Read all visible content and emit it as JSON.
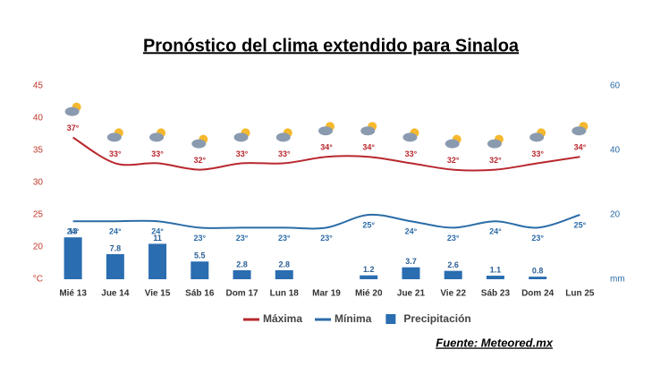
{
  "chart_data": {
    "type": "combo",
    "title": "Pronóstico del clima extendido para Sinaloa",
    "source": "Fuente: Meteored.mx",
    "categories": [
      "Mié 13",
      "Jue 14",
      "Vie 15",
      "Sáb 16",
      "Dom 17",
      "Lun 18",
      "Mar 19",
      "Mié 20",
      "Jue 21",
      "Vie 22",
      "Sáb 23",
      "Dom 24",
      "Lun 25"
    ],
    "ylim": [
      15,
      45
    ],
    "yticks": [
      {
        "value": 15,
        "label": "°C"
      },
      20,
      25,
      30,
      35,
      40,
      45
    ],
    "y2lim": [
      0,
      60
    ],
    "y2ticks": [
      {
        "value": 0,
        "label": "mm"
      },
      20,
      40,
      60
    ],
    "series": [
      {
        "name": "Máxima",
        "type": "line",
        "color": "#b8282e",
        "values": [
          37,
          33,
          33,
          32,
          33,
          33,
          34,
          34,
          33,
          32,
          32,
          33,
          34
        ],
        "value_labels": [
          "37°",
          "33°",
          "33°",
          "32°",
          "33°",
          "33°",
          "34°",
          "34°",
          "33°",
          "32°",
          "32°",
          "33°",
          "34°"
        ]
      },
      {
        "name": "Mínima",
        "type": "line",
        "color": "#2b6ca8",
        "values": [
          24,
          24,
          24,
          23,
          23,
          23,
          23,
          25,
          24,
          23,
          24,
          23,
          25
        ],
        "value_labels": [
          "24°",
          "24°",
          "24°",
          "23°",
          "23°",
          "23°",
          "23°",
          "25°",
          "24°",
          "23°",
          "24°",
          "23°",
          "25°"
        ]
      },
      {
        "name": "Precipitación",
        "type": "bar",
        "axis": "y2",
        "color": "#2a6db0",
        "values": [
          13,
          7.8,
          11,
          5.5,
          2.8,
          2.8,
          null,
          1.2,
          3.7,
          2.6,
          1.1,
          0.8,
          null
        ]
      }
    ]
  }
}
